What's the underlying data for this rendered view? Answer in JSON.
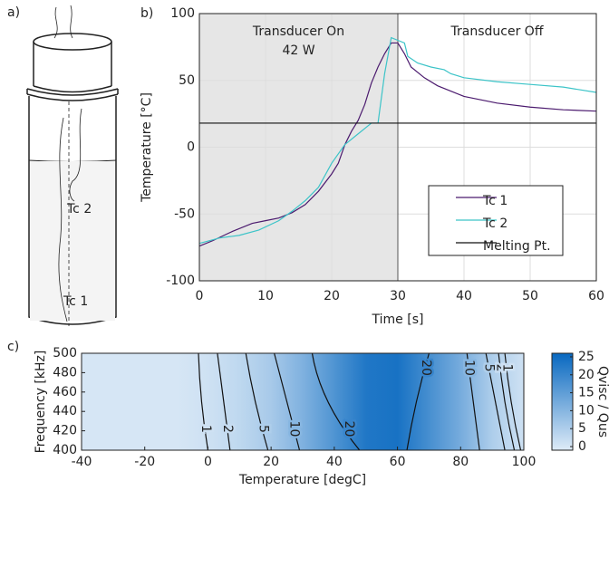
{
  "panel_a": {
    "label": "a)",
    "tc2": "Tc 2",
    "tc1": "Tc 1"
  },
  "chart_data": [
    {
      "type": "line",
      "panel_label": "b)",
      "xlabel": "Time [s]",
      "ylabel": "Temperature [°C]",
      "xlim": [
        0,
        60
      ],
      "ylim": [
        -100,
        100
      ],
      "xticks": [
        0,
        10,
        20,
        30,
        40,
        50,
        60
      ],
      "yticks": [
        -100,
        -50,
        0,
        50,
        100
      ],
      "grid": true,
      "shaded_region": [
        0,
        30
      ],
      "annotations": [
        "Transducer On",
        "42 W",
        "Transducer Off"
      ],
      "legend": "lower right",
      "series": [
        {
          "name": "Tc 1",
          "color": "#4b1a6e",
          "x": [
            0,
            2,
            5,
            8,
            10,
            12,
            14,
            16,
            18,
            20,
            21,
            22,
            23,
            24,
            25,
            26,
            27,
            28,
            29,
            30,
            31,
            32,
            34,
            36,
            38,
            40,
            45,
            50,
            55,
            60
          ],
          "values": [
            -74,
            -70,
            -63,
            -57,
            -55,
            -53,
            -49,
            -43,
            -33,
            -20,
            -12,
            2,
            12,
            20,
            32,
            48,
            60,
            70,
            78,
            78,
            70,
            60,
            52,
            46,
            42,
            38,
            33,
            30,
            28,
            27
          ]
        },
        {
          "name": "Tc 2",
          "color": "#3cc4c8",
          "x": [
            0,
            3,
            6,
            9,
            12,
            14,
            16,
            18,
            20,
            22,
            24,
            26,
            27,
            28,
            29,
            30,
            31,
            31.5,
            33,
            35,
            37,
            38,
            40,
            45,
            50,
            55,
            60
          ],
          "values": [
            -72,
            -68,
            -66,
            -62,
            -55,
            -48,
            -40,
            -30,
            -12,
            2,
            10,
            18,
            18,
            55,
            82,
            80,
            78,
            68,
            63,
            60,
            58,
            55,
            52,
            49,
            47,
            45,
            41
          ]
        },
        {
          "name": "Melting Pt.",
          "color": "#111111",
          "x": [
            0,
            60
          ],
          "values": [
            18,
            18
          ]
        }
      ]
    },
    {
      "type": "contour",
      "panel_label": "c)",
      "xlabel": "Temperature [degC]",
      "ylabel": "Frequency [kHz]",
      "xlim": [
        -40,
        100
      ],
      "ylim": [
        400,
        500
      ],
      "xticks": [
        -40,
        -20,
        0,
        20,
        40,
        60,
        80,
        100
      ],
      "yticks": [
        400,
        420,
        440,
        460,
        480,
        500
      ],
      "heatmap": {
        "x": [
          -40,
          -30,
          -20,
          -10,
          0,
          10,
          20,
          30,
          40,
          50,
          60,
          70,
          80,
          90,
          100
        ],
        "values": [
          0,
          0,
          0,
          0,
          1,
          3,
          6,
          11,
          17,
          23,
          24,
          18,
          12,
          5,
          1
        ]
      },
      "contours": [
        {
          "level": 1,
          "temperature": [
            0,
            -2,
            -3
          ],
          "frequency": [
            400,
            450,
            500
          ]
        },
        {
          "level": 2,
          "temperature": [
            7,
            5,
            3
          ],
          "frequency": [
            400,
            450,
            500
          ]
        },
        {
          "level": 5,
          "temperature": [
            19,
            15,
            12
          ],
          "frequency": [
            400,
            450,
            500
          ]
        },
        {
          "level": 10,
          "temperature": [
            29,
            25,
            21
          ],
          "frequency": [
            400,
            450,
            500
          ]
        },
        {
          "level": 20,
          "temperature": [
            48,
            38,
            33
          ],
          "frequency": [
            400,
            450,
            500
          ]
        },
        {
          "level": 20,
          "temperature": [
            63,
            66,
            70
          ],
          "frequency": [
            400,
            450,
            500
          ]
        },
        {
          "level": 10,
          "temperature": [
            86,
            84,
            82
          ],
          "frequency": [
            400,
            450,
            500
          ]
        },
        {
          "level": 5,
          "temperature": [
            94,
            91,
            88
          ],
          "frequency": [
            400,
            450,
            500
          ]
        },
        {
          "level": 2,
          "temperature": [
            97,
            94,
            92
          ],
          "frequency": [
            400,
            450,
            500
          ]
        },
        {
          "level": 1,
          "temperature": [
            99,
            96,
            94
          ],
          "frequency": [
            400,
            450,
            500
          ]
        }
      ],
      "colorbar": {
        "label": "Qvisc / Qus",
        "lim": [
          -1,
          26
        ],
        "ticks": [
          0,
          5,
          10,
          15,
          20,
          25
        ],
        "colors": [
          "#deebf7",
          "#0868c0"
        ]
      }
    }
  ]
}
